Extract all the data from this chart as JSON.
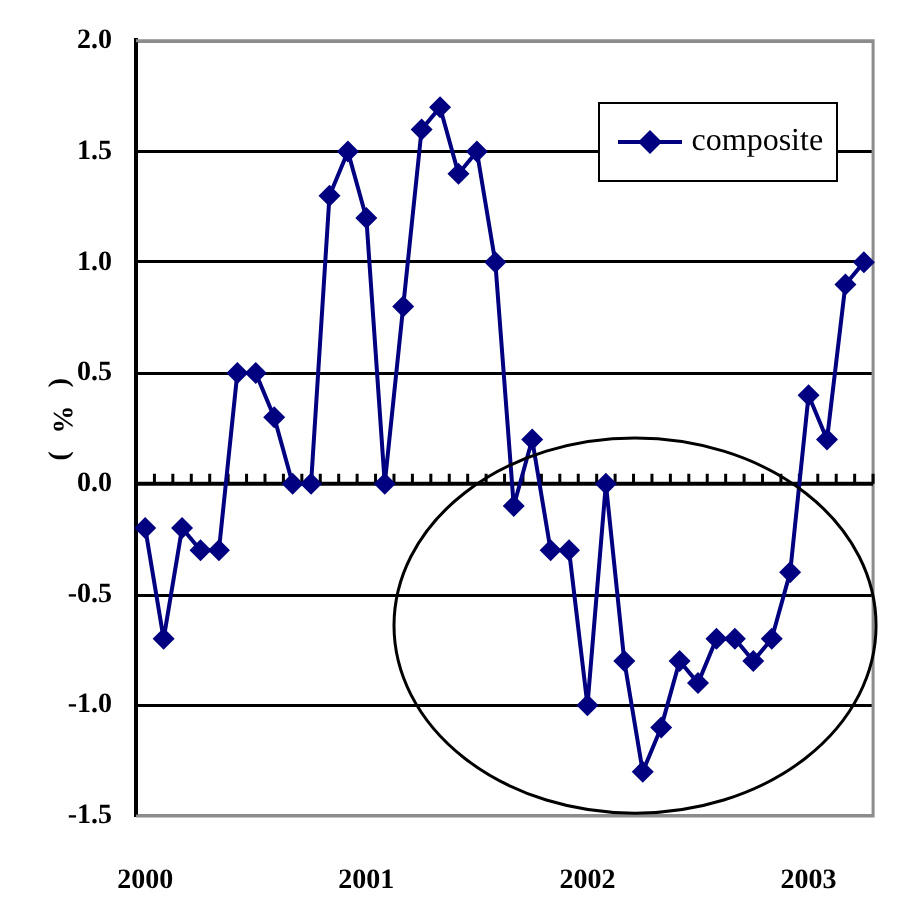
{
  "chart_data": {
    "type": "line",
    "ylabel": "(%)",
    "categories": [
      "2000",
      null,
      null,
      null,
      null,
      null,
      null,
      null,
      null,
      null,
      null,
      null,
      "2001",
      null,
      null,
      null,
      null,
      null,
      null,
      null,
      null,
      null,
      null,
      null,
      "2002",
      null,
      null,
      null,
      null,
      null,
      null,
      null,
      null,
      null,
      null,
      null,
      "2003",
      null,
      null,
      null
    ],
    "series": [
      {
        "name": "composite",
        "color": "#000080",
        "values": [
          -0.2,
          -0.7,
          -0.2,
          -0.3,
          -0.3,
          0.5,
          0.5,
          0.3,
          0,
          0,
          1.3,
          1.5,
          1.2,
          0,
          0.8,
          1.6,
          1.7,
          1.4,
          1.5,
          1.0,
          -0.1,
          0.2,
          -0.3,
          -0.3,
          -1.0,
          0,
          -0.8,
          -1.3,
          -1.1,
          -0.8,
          -0.9,
          -0.7,
          -0.7,
          -0.8,
          -0.7,
          -0.4,
          0.4,
          0.2,
          0.9,
          1.0
        ]
      }
    ],
    "ylim": [
      -1.5,
      2
    ],
    "yticks": [
      -1.5,
      {
        "value": -1,
        "label": "-1.0"
      },
      -0.5,
      {
        "value": 0,
        "label": "0.0"
      },
      0.5,
      {
        "value": 1,
        "label": "1.0"
      },
      1.5,
      {
        "value": 2,
        "label": "2.0"
      }
    ],
    "grid": "y",
    "legend": "top right",
    "marker": "diamond",
    "line_style": "solid"
  }
}
